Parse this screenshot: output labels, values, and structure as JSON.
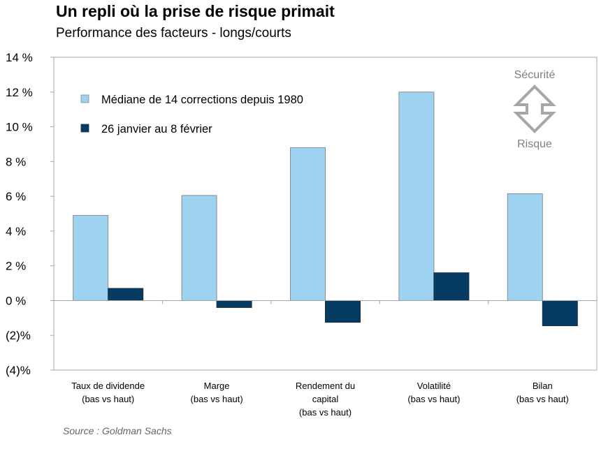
{
  "header": {
    "title": "Un repli où la prise de risque primait",
    "subtitle": "Performance des facteurs - longs/courts"
  },
  "footer": {
    "source": "Source : Goldman Sachs"
  },
  "chart_data": {
    "type": "bar",
    "categories": [
      [
        "Taux de dividende",
        "(bas vs haut)"
      ],
      [
        "Marge",
        "(bas vs haut)"
      ],
      [
        "Rendement du",
        "capital",
        "(bas vs haut)"
      ],
      [
        "Volatilité",
        "(bas vs haut)"
      ],
      [
        "Bilan",
        "(bas vs haut)"
      ]
    ],
    "series": [
      {
        "name": "Médiane de 14 corrections depuis 1980",
        "values": [
          4.9,
          6.05,
          8.8,
          12.0,
          6.15
        ],
        "color": "#9dd3f0"
      },
      {
        "name": "26 janvier au 8 février",
        "values": [
          0.7,
          -0.4,
          -1.25,
          1.6,
          -1.45
        ],
        "color": "#063b63"
      }
    ],
    "ylim": [
      -4,
      14
    ],
    "yticks": [
      14,
      12,
      10,
      8,
      6,
      4,
      2,
      0,
      -2,
      -4
    ],
    "ytick_labels": [
      "14 %",
      "12 %",
      "10 %",
      "8 %",
      "6 %",
      "4 %",
      "2 %",
      "0 %",
      "(2)%",
      "(4)%"
    ],
    "grid": false,
    "legend_position": "top-left",
    "annotation": {
      "top": "Sécurité",
      "bottom": "Risque",
      "arrow_color": "#a6a6a6"
    }
  }
}
